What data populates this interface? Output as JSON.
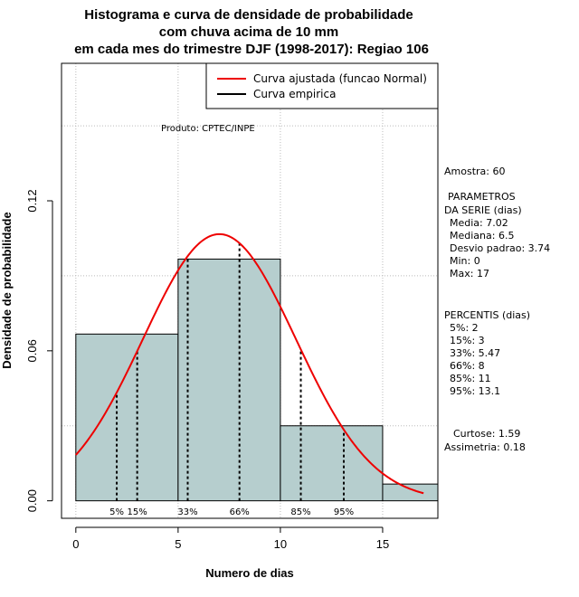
{
  "chart_data": {
    "type": "histogram",
    "title_lines": [
      "Histograma e curva de densidade de probabilidade",
      "com chuva acima de 10 mm",
      "em cada mes do trimestre DJF (1998-2017): Regiao 106"
    ],
    "xlabel": "Numero de dias",
    "ylabel": "Densidade de probabilidade",
    "xlim": [
      -0.7,
      17.7
    ],
    "ylim": [
      -0.007,
      0.175
    ],
    "x_ticks": [
      0,
      5,
      10,
      15
    ],
    "y_ticks": [
      0.0,
      0.06,
      0.12
    ],
    "y_tick_labels": [
      "0.00",
      "0.06",
      "0.12"
    ],
    "grid_x": [
      0,
      5,
      10,
      15
    ],
    "grid_y": [
      0.03,
      0.09,
      0.15
    ],
    "bins": [
      {
        "from": 0,
        "to": 5,
        "density": 0.0667
      },
      {
        "from": 5,
        "to": 10,
        "density": 0.0967
      },
      {
        "from": 10,
        "to": 15,
        "density": 0.03
      },
      {
        "from": 15,
        "to": 17.7,
        "density": 0.0067
      }
    ],
    "normal_fit": {
      "mean": 7.02,
      "sd": 3.74,
      "x_from": 0,
      "x_to": 17
    },
    "percentile_lines": [
      {
        "label": "5%",
        "x": 2
      },
      {
        "label": "15%",
        "x": 3
      },
      {
        "label": "33%",
        "x": 5.47
      },
      {
        "label": "66%",
        "x": 8
      },
      {
        "label": "85%",
        "x": 11
      },
      {
        "label": "95%",
        "x": 13.1
      }
    ],
    "legend": [
      {
        "label": "Curva ajustada (funcao Normal)",
        "color": "#ee0000"
      },
      {
        "label": "Curva empirica",
        "color": "#000000"
      }
    ],
    "annotation": "Produto: CPTEC/INPE"
  },
  "stats": {
    "amostra": "Amostra: 60",
    "parametros_title_1": "PARAMETROS",
    "parametros_title_2": "DA SERIE (dias)",
    "parametros": [
      "Media: 7.02",
      "Mediana: 6.5",
      "Desvio padrao: 3.74",
      "Min: 0",
      "Max: 17"
    ],
    "percentis_title": "PERCENTIS (dias)",
    "percentis": [
      "5%: 2",
      "15%: 3",
      "33%: 5.47",
      "66%: 8",
      "85%: 11",
      "95%: 13.1"
    ],
    "curtose": "Curtose: 1.59",
    "assimetria": "Assimetria: 0.18"
  },
  "colors": {
    "bar_fill": "#b6cece",
    "curve": "#ee0000",
    "grid": "#bbbbbb"
  }
}
